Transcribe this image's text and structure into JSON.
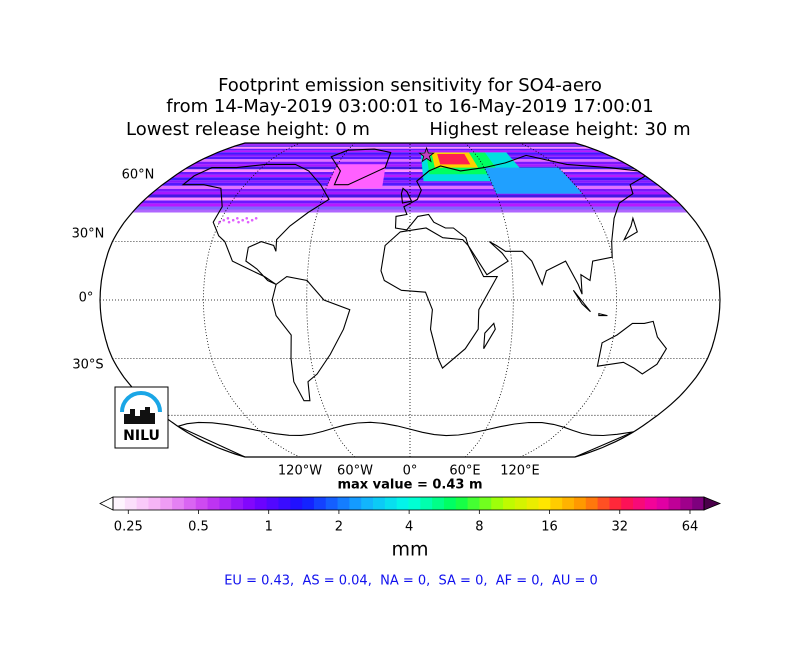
{
  "title": [
    "Footprint emission sensitivity for SO4-aero",
    "from 14-May-2019 03:00:01 to 16-May-2019 17:00:01"
  ],
  "release": {
    "lowest": "Lowest release height: 0 m",
    "highest": "Highest release height: 30 m"
  },
  "map": {
    "lat_labels": [
      "60°N",
      "30°N",
      "0°",
      "30°S"
    ],
    "lon_labels": [
      "120°W",
      "60°W",
      "0°",
      "60°E",
      "120°E"
    ],
    "max_value": "max value = 0.43 m",
    "logo": "NILU"
  },
  "colorbar": {
    "lim": [
      0.215,
      73.5
    ],
    "ticks": [
      0.25,
      0.5,
      1,
      2,
      4,
      8,
      16,
      32,
      64
    ],
    "log": true,
    "unit": "mm"
  },
  "summary": "EU = 0.43,  AS = 0.04,  NA = 0,  SA = 0,  AF = 0,  AU = 0"
}
